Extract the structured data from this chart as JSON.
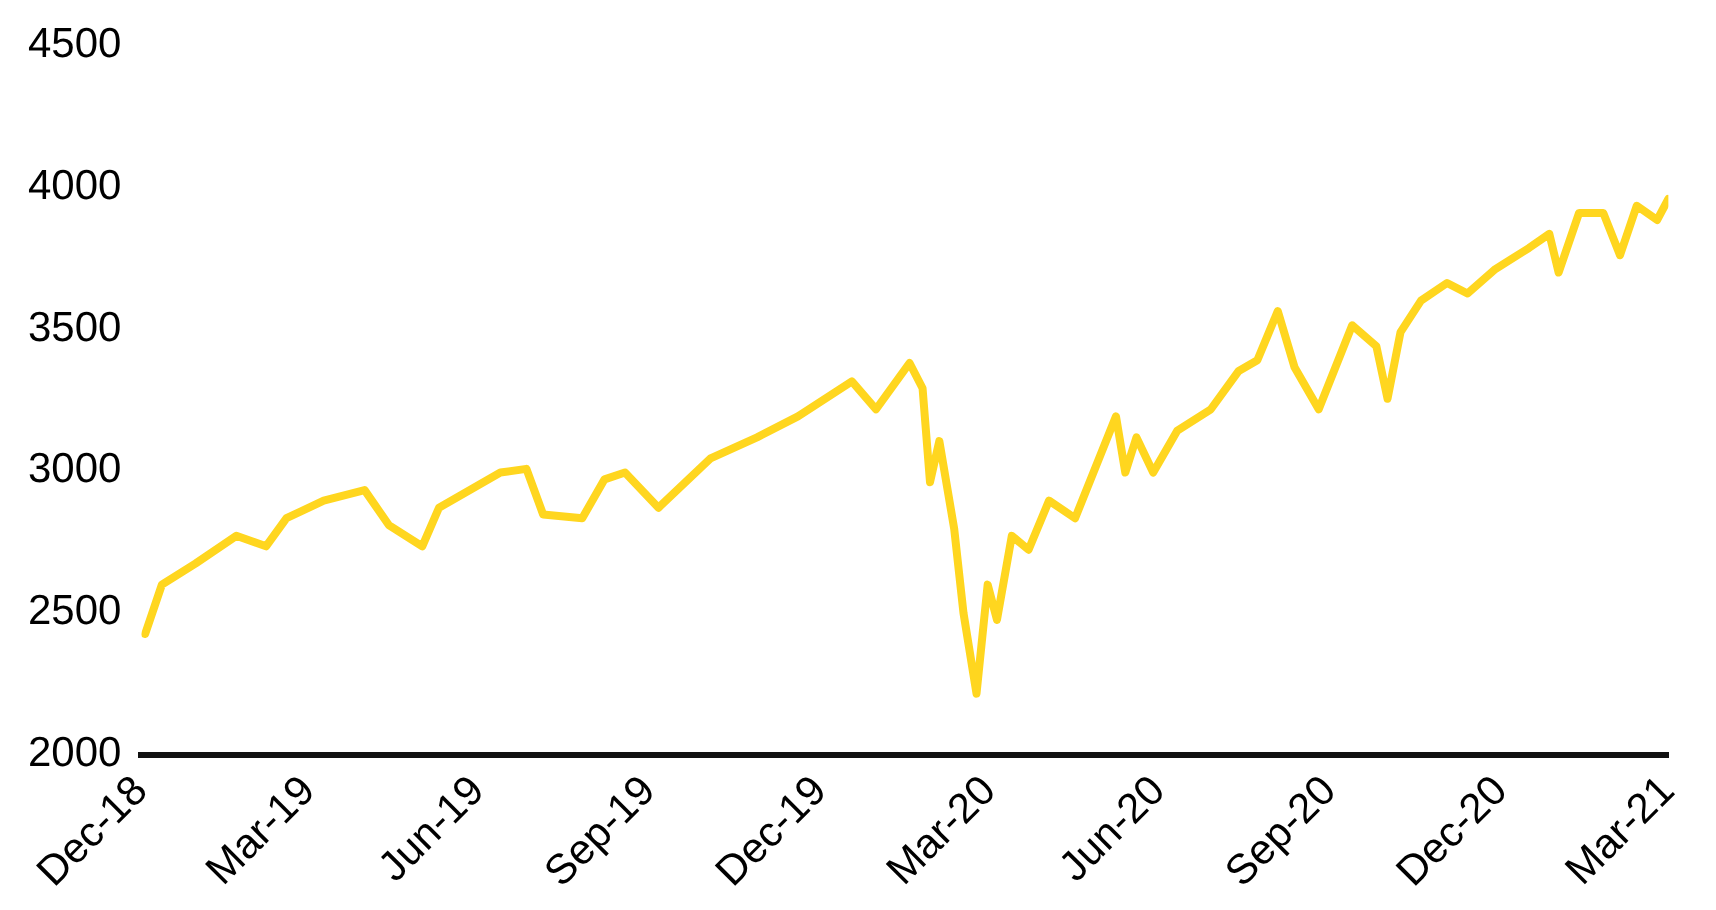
{
  "chart_data": {
    "type": "line",
    "xlim": [
      "2018-12-31",
      "2021-03-31"
    ],
    "ylim": [
      2000,
      4500
    ],
    "yticks": [
      2000,
      2500,
      3000,
      3500,
      4000,
      4500
    ],
    "xticks": [
      {
        "value": "2018-12-31",
        "label": "Dec-18"
      },
      {
        "value": "2019-03-31",
        "label": "Mar-19"
      },
      {
        "value": "2019-06-30",
        "label": "Jun-19"
      },
      {
        "value": "2019-09-30",
        "label": "Sep-19"
      },
      {
        "value": "2019-12-31",
        "label": "Dec-19"
      },
      {
        "value": "2020-03-31",
        "label": "Mar-20"
      },
      {
        "value": "2020-06-30",
        "label": "Jun-20"
      },
      {
        "value": "2020-09-30",
        "label": "Sep-20"
      },
      {
        "value": "2020-12-31",
        "label": "Dec-20"
      },
      {
        "value": "2021-03-31",
        "label": "Mar-21"
      }
    ],
    "grid": false,
    "legend": false,
    "marker": "none",
    "line_style": "solid",
    "series": [
      {
        "color": "#ffd61f",
        "x": [
          "2019-01-02",
          "2019-01-11",
          "2019-01-29",
          "2019-02-20",
          "2019-03-08",
          "2019-03-19",
          "2019-04-08",
          "2019-04-30",
          "2019-05-13",
          "2019-05-31",
          "2019-06-09",
          "2019-07-12",
          "2019-07-26",
          "2019-08-04",
          "2019-08-25",
          "2019-09-06",
          "2019-09-17",
          "2019-10-05",
          "2019-11-02",
          "2019-11-27",
          "2019-12-19",
          "2020-01-17",
          "2020-01-30",
          "2020-02-17",
          "2020-02-24",
          "2020-02-28",
          "2020-03-04",
          "2020-03-12",
          "2020-03-17",
          "2020-03-24",
          "2020-03-30",
          "2020-04-04",
          "2020-04-12",
          "2020-04-21",
          "2020-05-02",
          "2020-05-16",
          "2020-06-07",
          "2020-06-12",
          "2020-06-18",
          "2020-06-27",
          "2020-07-10",
          "2020-07-28",
          "2020-08-12",
          "2020-08-22",
          "2020-09-02",
          "2020-09-11",
          "2020-09-24",
          "2020-10-12",
          "2020-10-25",
          "2020-10-31",
          "2020-11-07",
          "2020-11-18",
          "2020-12-02",
          "2020-12-13",
          "2020-12-28",
          "2021-01-15",
          "2021-01-26",
          "2021-01-31",
          "2021-02-11",
          "2021-02-24",
          "2021-03-05",
          "2021-03-14",
          "2021-03-25",
          "2021-03-31"
        ],
        "values": [
          2425,
          2599,
          2673,
          2771,
          2734,
          2833,
          2895,
          2932,
          2809,
          2734,
          2870,
          2994,
          3007,
          2846,
          2833,
          2970,
          2994,
          2870,
          3044,
          3118,
          3192,
          3315,
          3217,
          3380,
          3291,
          2960,
          3105,
          2796,
          2499,
          2215,
          2599,
          2475,
          2771,
          2722,
          2895,
          2833,
          3192,
          2994,
          3118,
          2994,
          3142,
          3217,
          3352,
          3390,
          3563,
          3365,
          3217,
          3513,
          3439,
          3254,
          3489,
          3600,
          3662,
          3625,
          3711,
          3785,
          3835,
          3699,
          3909,
          3909,
          3760,
          3934,
          3884,
          3958
        ]
      }
    ]
  }
}
